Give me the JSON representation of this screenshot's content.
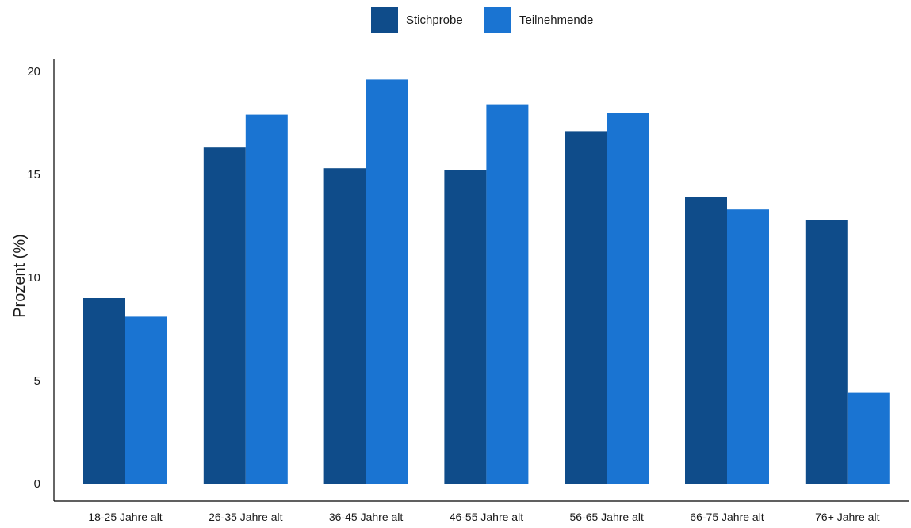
{
  "chart_data": {
    "type": "bar",
    "categories": [
      "18-25 Jahre alt",
      "26-35 Jahre alt",
      "36-45 Jahre alt",
      "46-55 Jahre alt",
      "56-65 Jahre alt",
      "66-75 Jahre alt",
      "76+ Jahre alt"
    ],
    "series": [
      {
        "name": "Stichprobe",
        "color": "#0f4c8a",
        "values": [
          9.0,
          16.3,
          15.3,
          15.2,
          17.1,
          13.9,
          12.8
        ]
      },
      {
        "name": "Teilnehmende",
        "color": "#1a74d2",
        "values": [
          8.1,
          17.9,
          19.6,
          18.4,
          18.0,
          13.3,
          4.4
        ]
      }
    ],
    "title": "",
    "xlabel": "",
    "ylabel": "Prozent (%)",
    "ylim": [
      0,
      20
    ],
    "yticks": [
      0,
      5,
      10,
      15,
      20
    ],
    "grid": false,
    "legend_position": "top-center"
  }
}
